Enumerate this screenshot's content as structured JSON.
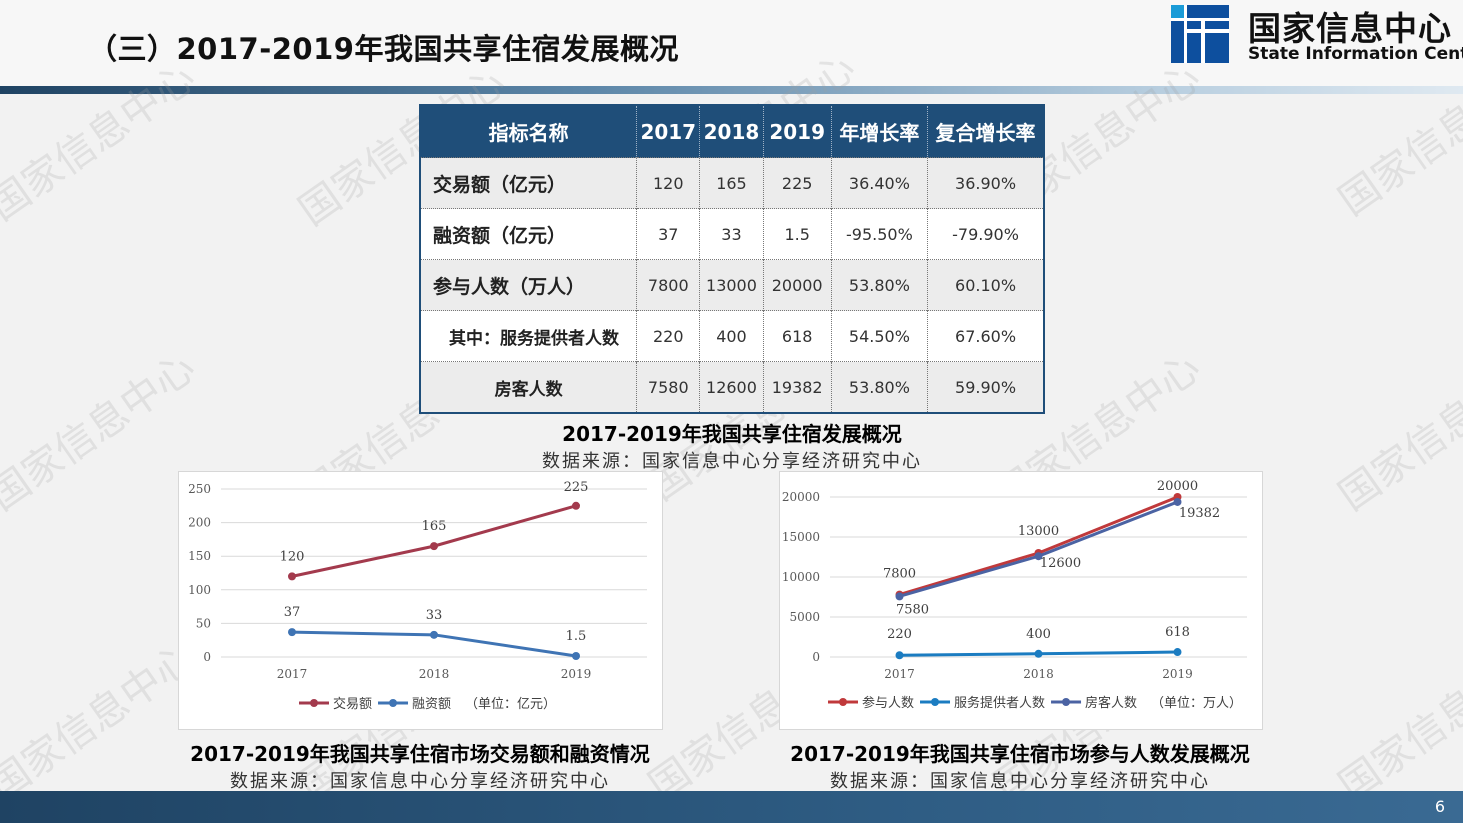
{
  "header": {
    "title": "（三）2017-2019年我国共享住宿发展概况",
    "logo_cn": "国家信息中心",
    "logo_en": "State Information Center"
  },
  "watermark": "国家信息中心",
  "table": {
    "headers": [
      "指标名称",
      "2017",
      "2018",
      "2019",
      "年增长率",
      "复合增长率"
    ],
    "rows": [
      {
        "name": "交易额（亿元）",
        "v2017": "120",
        "v2018": "165",
        "v2019": "225",
        "yoy": "36.40%",
        "cagr": "36.90%"
      },
      {
        "name": "融资额（亿元）",
        "v2017": "37",
        "v2018": "33",
        "v2019": "1.5",
        "yoy": "-95.50%",
        "cagr": "-79.90%"
      },
      {
        "name": "参与人数（万人）",
        "v2017": "7800",
        "v2018": "13000",
        "v2019": "20000",
        "yoy": "53.80%",
        "cagr": "60.10%"
      },
      {
        "name": "其中：服务提供者人数",
        "v2017": "220",
        "v2018": "400",
        "v2019": "618",
        "yoy": "54.50%",
        "cagr": "67.60%"
      },
      {
        "name": "房客人数",
        "v2017": "7580",
        "v2018": "12600",
        "v2019": "19382",
        "yoy": "53.80%",
        "cagr": "59.90%"
      }
    ],
    "caption": "2017-2019年我国共享住宿发展概况",
    "source": "数据来源：国家信息中心分享经济研究中心"
  },
  "chart_left": {
    "caption": "2017-2019年我国共享住宿市场交易额和融资情况",
    "source": "数据来源：国家信息中心分享经济研究中心"
  },
  "chart_right": {
    "caption": "2017-2019年我国共享住宿市场参与人数发展概况",
    "source": "数据来源：国家信息中心分享经济研究中心"
  },
  "chart_data": [
    {
      "type": "line",
      "categories": [
        "2017",
        "2018",
        "2019"
      ],
      "series": [
        {
          "name": "交易额",
          "values": [
            120,
            165,
            225
          ],
          "labels": [
            "120",
            "165",
            "225"
          ],
          "color": "#a33a4d"
        },
        {
          "name": "融资额",
          "values": [
            37,
            33,
            1.5
          ],
          "labels": [
            "37",
            "33",
            "1.5"
          ],
          "color": "#3f74b4"
        }
      ],
      "legend_note": "（单位：亿元）",
      "ylim": [
        0,
        250
      ],
      "yticks": [
        "0",
        "50",
        "100",
        "150",
        "200",
        "250"
      ],
      "legend": "bottom",
      "grid": true
    },
    {
      "type": "line",
      "categories": [
        "2017",
        "2018",
        "2019"
      ],
      "series": [
        {
          "name": "参与人数",
          "values": [
            7800,
            13000,
            20000
          ],
          "labels": [
            "7800",
            "13000",
            "20000"
          ],
          "color": "#c0393b"
        },
        {
          "name": "服务提供者人数",
          "values": [
            220,
            400,
            618
          ],
          "labels": [
            "220",
            "400",
            "618"
          ],
          "color": "#1b7cc1"
        },
        {
          "name": "房客人数",
          "values": [
            7580,
            12600,
            19382
          ],
          "labels": [
            "7580",
            "12600",
            "19382"
          ],
          "color": "#4b63a3"
        }
      ],
      "legend_note": "（单位：万人）",
      "ylim": [
        0,
        20000
      ],
      "yticks": [
        "0",
        "5000",
        "10000",
        "15000",
        "20000"
      ],
      "legend": "bottom",
      "grid": true
    }
  ],
  "footer": {
    "page": "6"
  }
}
